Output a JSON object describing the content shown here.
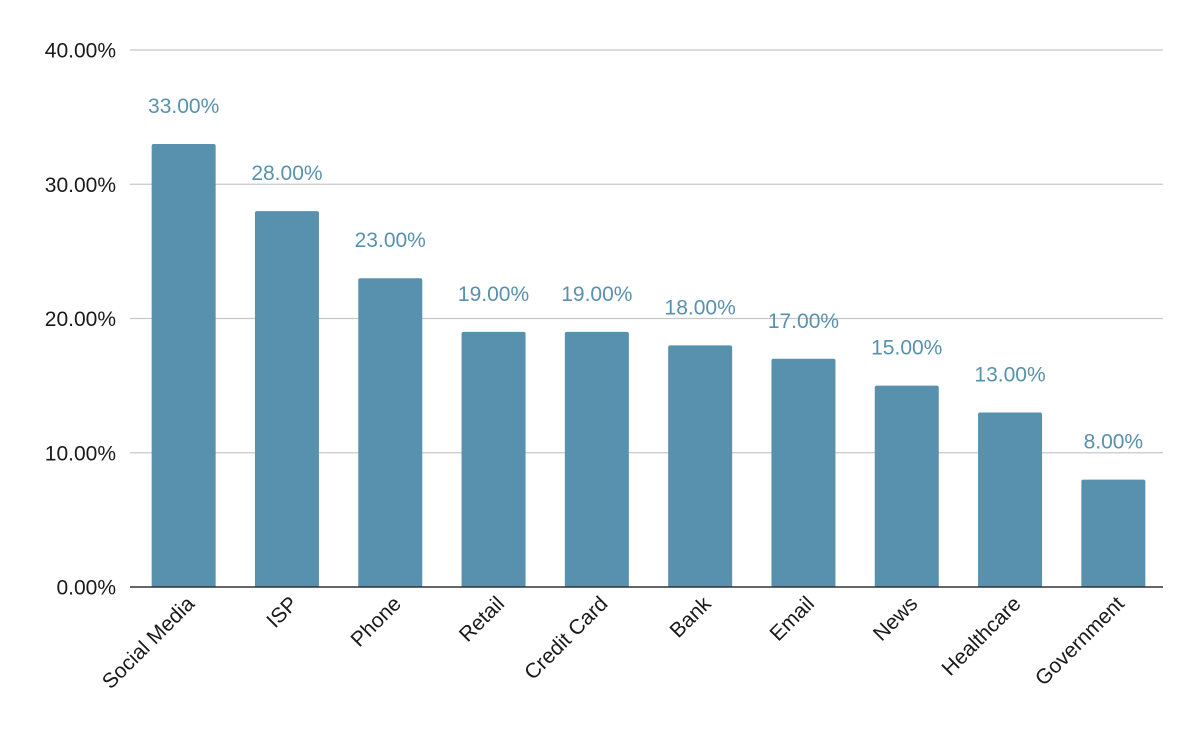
{
  "chart_data": {
    "type": "bar",
    "title": "",
    "xlabel": "",
    "ylabel": "",
    "categories": [
      "Social Media",
      "ISP",
      "Phone",
      "Retail",
      "Credit Card",
      "Bank",
      "Email",
      "News",
      "Healthcare",
      "Government"
    ],
    "values": [
      33,
      28,
      23,
      19,
      19,
      18,
      17,
      15,
      13,
      8
    ],
    "data_labels": [
      "33.00%",
      "28.00%",
      "23.00%",
      "19.00%",
      "19.00%",
      "18.00%",
      "17.00%",
      "15.00%",
      "13.00%",
      "8.00%"
    ],
    "ylim": [
      0,
      40
    ],
    "y_ticks": [
      0,
      10,
      20,
      30,
      40
    ],
    "y_tick_labels": [
      "0.00%",
      "10.00%",
      "20.00%",
      "30.00%",
      "40.00%"
    ],
    "grid": true,
    "legend": "none",
    "colors": {
      "bar": "#5891ad",
      "label": "#5891ad"
    }
  }
}
